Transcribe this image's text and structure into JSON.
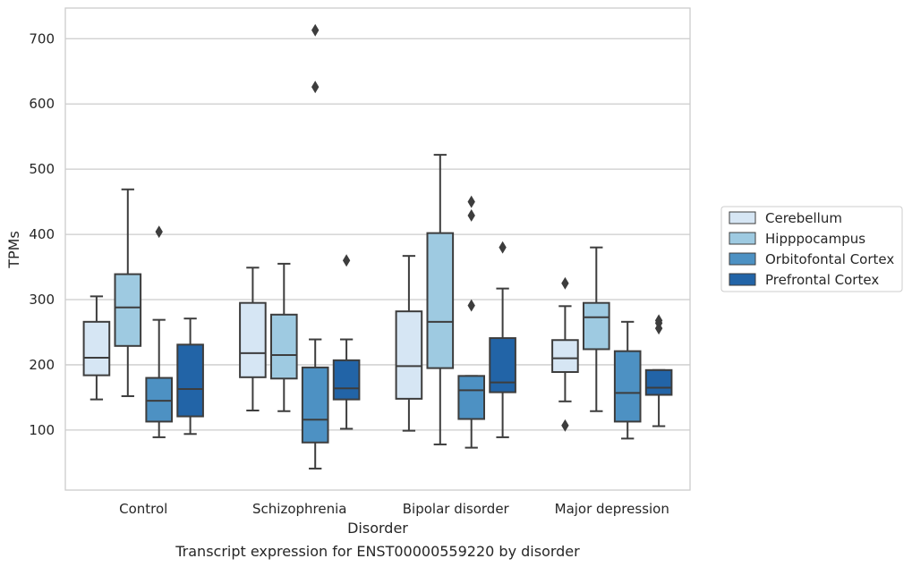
{
  "caption": "Transcript expression for ENST00000559220 by disorder",
  "chart_data": {
    "type": "box",
    "xlabel": "Disorder",
    "ylabel": "TPMs",
    "ylim": [
      8,
      747
    ],
    "yticks": [
      100,
      200,
      300,
      400,
      500,
      600,
      700
    ],
    "grid": "horizontal",
    "legend_placement": "right",
    "categories": [
      "Control",
      "Schizophrenia",
      "Bipolar disorder",
      "Major depression"
    ],
    "series": [
      {
        "name": "Cerebellum",
        "color": "#d6e6f4",
        "boxes": [
          {
            "whislo": 147,
            "q1": 184,
            "med": 211,
            "q3": 266,
            "whishi": 305,
            "fliers": []
          },
          {
            "whislo": 130,
            "q1": 181,
            "med": 218,
            "q3": 295,
            "whishi": 349,
            "fliers": []
          },
          {
            "whislo": 99,
            "q1": 148,
            "med": 198,
            "q3": 282,
            "whishi": 367,
            "fliers": []
          },
          {
            "whislo": 144,
            "q1": 189,
            "med": 210,
            "q3": 238,
            "whishi": 290,
            "fliers": [
              107,
              325
            ]
          }
        ]
      },
      {
        "name": "Hipppocampus",
        "color": "#9ecae1",
        "boxes": [
          {
            "whislo": 152,
            "q1": 229,
            "med": 288,
            "q3": 339,
            "whishi": 469,
            "fliers": []
          },
          {
            "whislo": 129,
            "q1": 179,
            "med": 215,
            "q3": 277,
            "whishi": 355,
            "fliers": []
          },
          {
            "whislo": 78,
            "q1": 195,
            "med": 266,
            "q3": 402,
            "whishi": 522,
            "fliers": []
          },
          {
            "whislo": 129,
            "q1": 224,
            "med": 273,
            "q3": 295,
            "whishi": 380,
            "fliers": []
          }
        ]
      },
      {
        "name": "Orbitofontal Cortex",
        "color": "#4d91c3",
        "boxes": [
          {
            "whislo": 89,
            "q1": 113,
            "med": 145,
            "q3": 180,
            "whishi": 269,
            "fliers": [
              404
            ]
          },
          {
            "whislo": 41,
            "q1": 81,
            "med": 116,
            "q3": 196,
            "whishi": 239,
            "fliers": [
              713,
              626
            ]
          },
          {
            "whislo": 73,
            "q1": 117,
            "med": 161,
            "q3": 183,
            "whishi": 183,
            "fliers": [
              291,
              429,
              450
            ]
          },
          {
            "whislo": 87,
            "q1": 113,
            "med": 157,
            "q3": 221,
            "whishi": 266,
            "fliers": []
          }
        ]
      },
      {
        "name": "Prefrontal Cortex",
        "color": "#2264a7",
        "boxes": [
          {
            "whislo": 94,
            "q1": 121,
            "med": 163,
            "q3": 231,
            "whishi": 271,
            "fliers": []
          },
          {
            "whislo": 102,
            "q1": 147,
            "med": 164,
            "q3": 207,
            "whishi": 239,
            "fliers": [
              360
            ]
          },
          {
            "whislo": 89,
            "q1": 158,
            "med": 173,
            "q3": 241,
            "whishi": 317,
            "fliers": [
              380
            ]
          },
          {
            "whislo": 106,
            "q1": 154,
            "med": 165,
            "q3": 192,
            "whishi": 192,
            "fliers": [
              256,
              264,
              268
            ]
          }
        ]
      }
    ]
  }
}
